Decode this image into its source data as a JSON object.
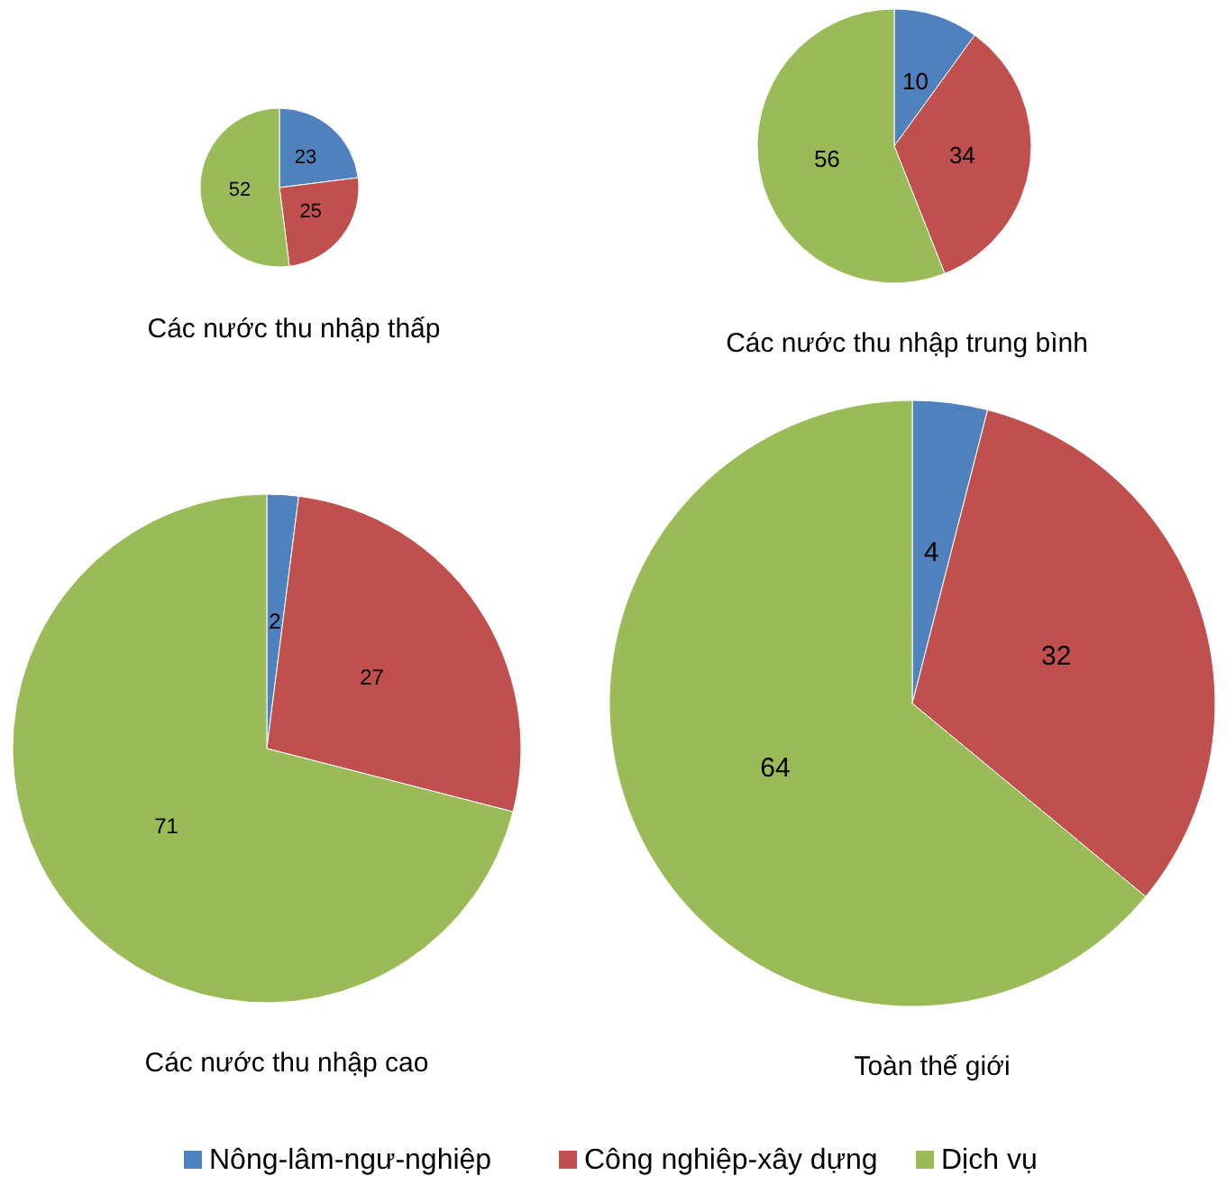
{
  "chart_data": {
    "type": "pie",
    "categories": [
      "Nông-lâm-ngư-nghiệp",
      "Công nghiệp-xây dựng",
      "Dịch vụ"
    ],
    "colors": [
      "#4f81bd",
      "#c0504d",
      "#9bbb59"
    ],
    "series": [
      {
        "name": "Các nước thu nhập thấp",
        "values": [
          23,
          25,
          52
        ]
      },
      {
        "name": "Các nước thu nhập trung bình",
        "values": [
          10,
          34,
          56
        ]
      },
      {
        "name": "Các nước thu nhập cao",
        "values": [
          2,
          27,
          71
        ]
      },
      {
        "name": "Toàn thế giới",
        "values": [
          4,
          32,
          64
        ]
      }
    ],
    "data_labels": true,
    "legend": "bottom"
  }
}
